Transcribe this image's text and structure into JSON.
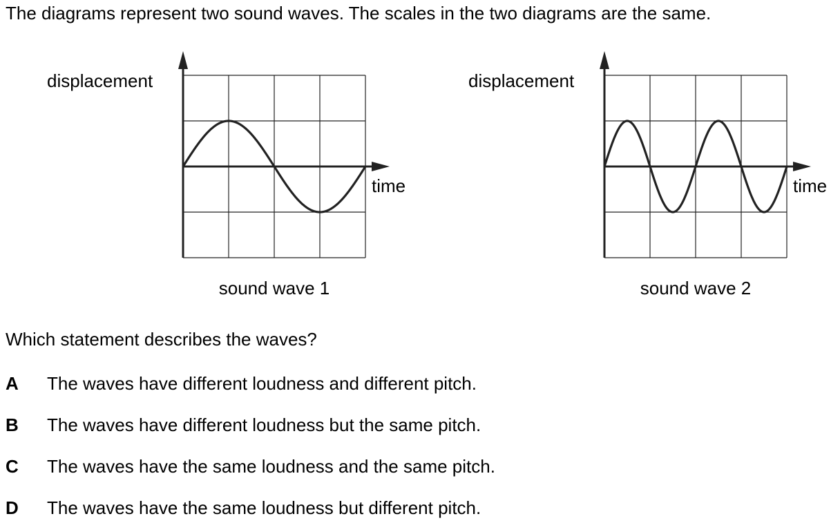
{
  "intro_text": "The diagrams represent two sound waves. The scales in the two diagrams are the same.",
  "diagrams": [
    {
      "y_label": "displacement",
      "x_label": "time",
      "caption": "sound wave 1",
      "amplitude_squares": 1,
      "cycles_across_grid": 1
    },
    {
      "y_label": "displacement",
      "x_label": "time",
      "caption": "sound wave 2",
      "amplitude_squares": 1,
      "cycles_across_grid": 2
    }
  ],
  "question": "Which statement describes the waves?",
  "options": [
    {
      "letter": "A",
      "text": "The waves have different loudness and different pitch."
    },
    {
      "letter": "B",
      "text": "The waves have different loudness but the same pitch."
    },
    {
      "letter": "C",
      "text": "The waves have the same loudness and the same pitch."
    },
    {
      "letter": "D",
      "text": "The waves have the same loudness but different pitch."
    }
  ]
}
